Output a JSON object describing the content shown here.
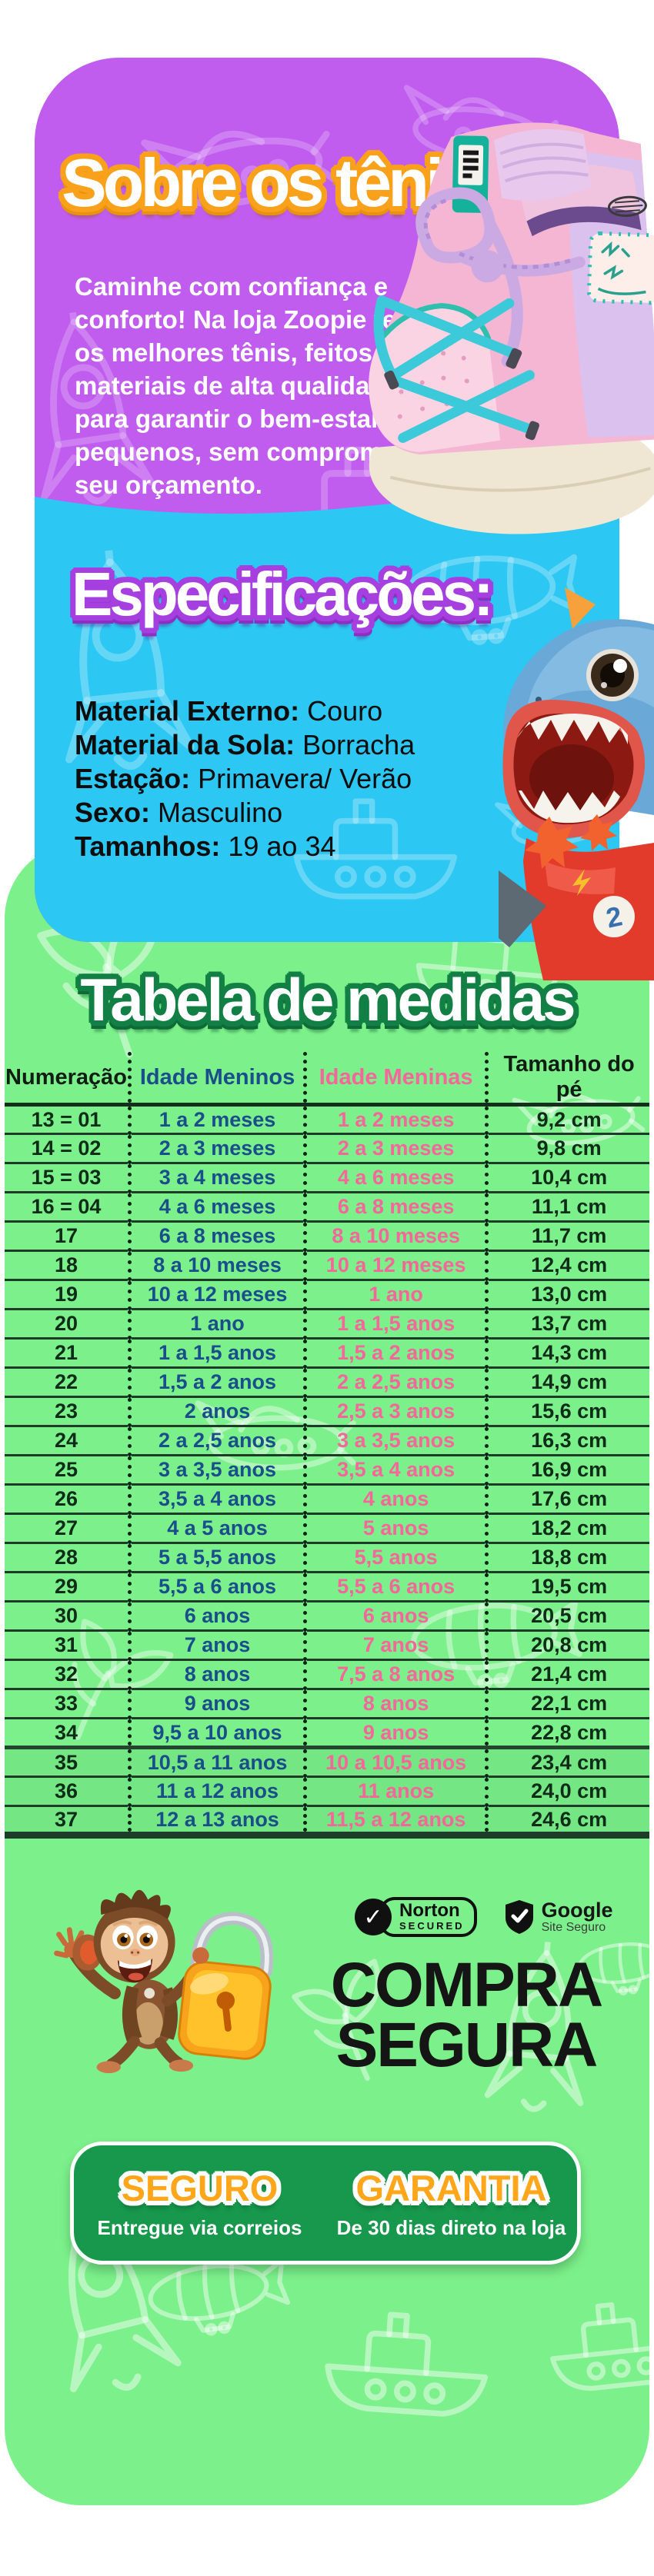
{
  "hero": {
    "title": "Sobre os tênis",
    "desc_part1": "Caminhe com confiança e conforto! Na loja ",
    "desc_bold": "Zoopie",
    "desc_part2": " tem os melhores tênis, feitos com materiais de alta qualidade para garantir o bem-estar dos pequenos, sem comprometer seu orçamento."
  },
  "specs": {
    "title": "Especificações:",
    "items": [
      {
        "label": "Material Externo:",
        "value": "Couro"
      },
      {
        "label": "Material da Sola:",
        "value": "Borracha"
      },
      {
        "label": "Estação:",
        "value": "Primavera/ Verão"
      },
      {
        "label": "Sexo:",
        "value": "Masculino"
      },
      {
        "label": "Tamanhos:",
        "value": "19 ao 34"
      }
    ]
  },
  "size_table": {
    "title": "Tabela de medidas",
    "columns": [
      "Numeração",
      "Idade Meninos",
      "Idade Meninas",
      "Tamanho do pé"
    ],
    "rows": [
      [
        "13 = 01",
        "1 a 2 meses",
        "1 a 2 meses",
        "9,2 cm"
      ],
      [
        "14 = 02",
        "2 a 3 meses",
        "2 a 3 meses",
        "9,8 cm"
      ],
      [
        "15 = 03",
        "3 a 4 meses",
        "4 a 6 meses",
        "10,4 cm"
      ],
      [
        "16 = 04",
        "4 a 6 meses",
        "6 a 8 meses",
        "11,1 cm"
      ],
      [
        "17",
        "6 a 8 meses",
        "8 a 10 meses",
        "11,7 cm"
      ],
      [
        "18",
        "8 a 10 meses",
        "10 a 12 meses",
        "12,4 cm"
      ],
      [
        "19",
        "10 a 12 meses",
        "1 ano",
        "13,0 cm"
      ],
      [
        "20",
        "1 ano",
        "1 a 1,5 anos",
        "13,7 cm"
      ],
      [
        "21",
        "1 a 1,5 anos",
        "1,5 a 2 anos",
        "14,3 cm"
      ],
      [
        "22",
        "1,5 a 2 anos",
        "2 a 2,5 anos",
        "14,9 cm"
      ],
      [
        "23",
        "2 anos",
        "2,5 a 3 anos",
        "15,6 cm"
      ],
      [
        "24",
        "2 a 2,5 anos",
        "3 a 3,5 anos",
        "16,3 cm"
      ],
      [
        "25",
        "3 a 3,5 anos",
        "3,5 a 4 anos",
        "16,9 cm"
      ],
      [
        "26",
        "3,5 a 4 anos",
        "4 anos",
        "17,6 cm"
      ],
      [
        "27",
        "4 a 5 anos",
        "5 anos",
        "18,2 cm"
      ],
      [
        "28",
        "5 a 5,5 anos",
        "5,5 anos",
        "18,8 cm"
      ],
      [
        "29",
        "5,5 a 6 anos",
        "5,5 a 6 anos",
        "19,5 cm"
      ],
      [
        "30",
        "6 anos",
        "6 anos",
        "20,5 cm"
      ],
      [
        "31",
        "7 anos",
        "7 anos",
        "20,8 cm"
      ],
      [
        "32",
        "8 anos",
        "7,5 a 8 anos",
        "21,4 cm"
      ],
      [
        "33",
        "9 anos",
        "8 anos",
        "22,1 cm"
      ],
      [
        "34",
        "9,5 a 10 anos",
        "9 anos",
        "22,8 cm"
      ],
      [
        "35",
        "10,5 a 11 anos",
        "10 a 10,5 anos",
        "23,4 cm"
      ],
      [
        "36",
        "11 a 12 anos",
        "11 anos",
        "24,0 cm"
      ],
      [
        "37",
        "12 a 13 anos",
        "11,5 a 12 anos",
        "24,6 cm"
      ]
    ]
  },
  "security": {
    "norton_check": "✓",
    "norton_line1": "Norton",
    "norton_line2": "SECURED",
    "google_line1": "Google",
    "google_line2": "Site Seguro",
    "headline_line1": "COMPRA",
    "headline_line2": "SEGURA"
  },
  "guarantee": {
    "left_title": "SEGURO",
    "left_subtitle": "Entregue via correios",
    "right_title": "GARANTIA",
    "right_subtitle": "De 30 dias direto na loja"
  },
  "characters": {
    "sneaker_icon": "pink-teal-high-top-sneaker",
    "shark_icon": "cartoon-shark-mascot",
    "monkey_icon": "monkey-with-padlock"
  },
  "colors": {
    "purple": "#c05def",
    "cyan": "#2cc7f3",
    "green": "#7cf18b",
    "dark_green": "#17984d",
    "orange": "#f9a11b",
    "navy": "#1a4e8a",
    "pink": "#f4679b"
  }
}
